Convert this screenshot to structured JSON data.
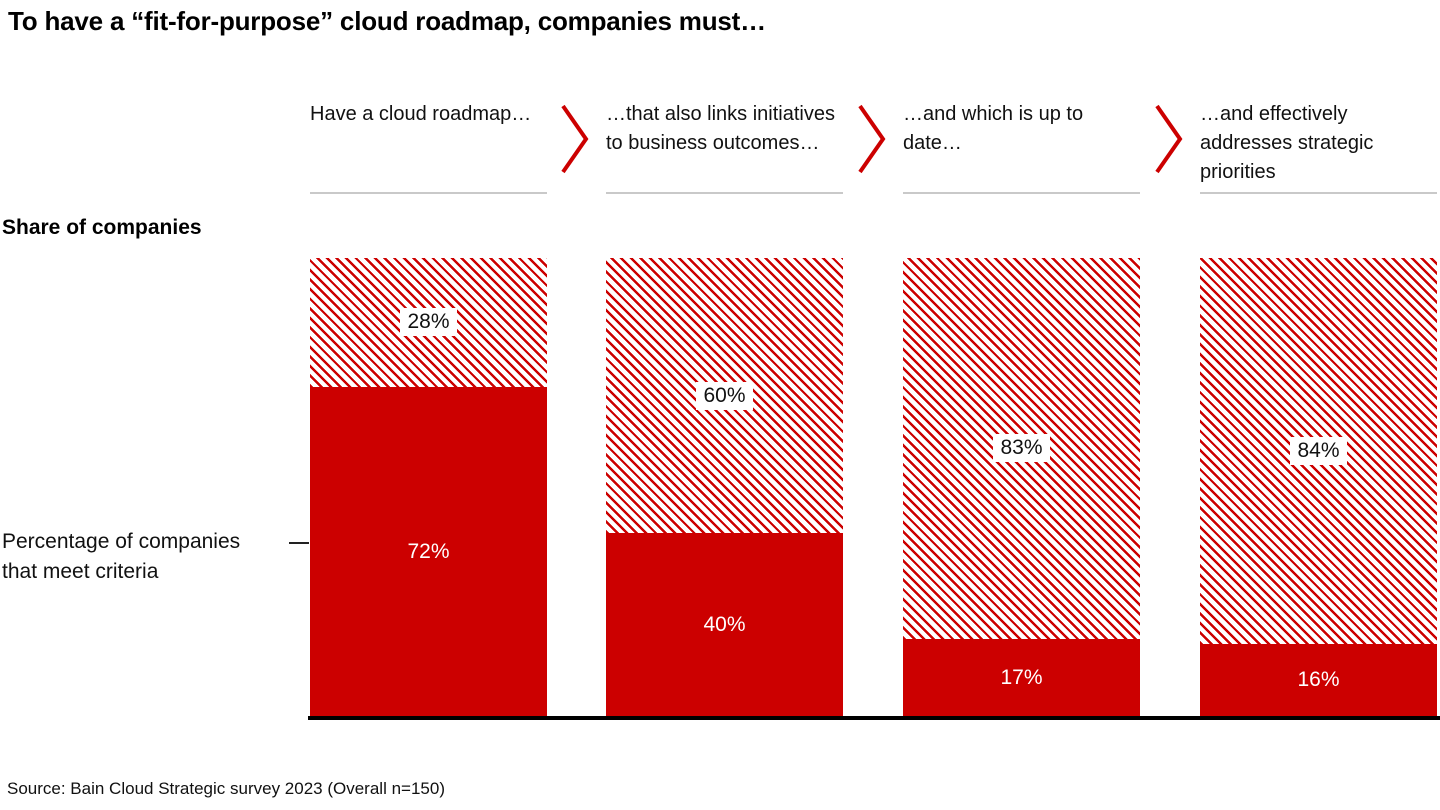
{
  "title": "To have a “fit-for-purpose” cloud roadmap, companies must…",
  "labels": {
    "y_axis_title": "Share of companies",
    "annotation_line1": "Percentage of companies",
    "annotation_line2": "that meet criteria"
  },
  "source": "Source: Bain Cloud Strategic survey 2023 (Overall n=150)",
  "colors": {
    "bain_red": "#cc0000",
    "hatch_stripe_red": "#cc0000",
    "underline_gray": "#c9c9c9",
    "baseline_black": "#000000",
    "solid_label_white": "#ffffff"
  },
  "chart_data": {
    "type": "bar",
    "stacked": true,
    "orientation": "vertical",
    "unit": "percent",
    "ylim": [
      0,
      100
    ],
    "grid": false,
    "legend": false,
    "categories": [
      "Have a cloud roadmap…",
      "…that also links initiatives to business outcomes…",
      "…and which is up to date…",
      "…and effectively addresses strategic priorities"
    ],
    "series": [
      {
        "name": "Percentage of companies that meet criteria (solid red)",
        "values": [
          72,
          40,
          17,
          16
        ]
      },
      {
        "name": "Remainder of companies (hatched)",
        "values": [
          28,
          60,
          83,
          84
        ]
      }
    ],
    "columns": [
      {
        "header": "Have a cloud roadmap…",
        "hatched_value": 28,
        "hatched_label": "28%",
        "solid_value": 72,
        "solid_label": "72%"
      },
      {
        "header": "…that also links initiatives to business outcomes…",
        "hatched_value": 60,
        "hatched_label": "60%",
        "solid_value": 40,
        "solid_label": "40%"
      },
      {
        "header": "…and which is up to date…",
        "hatched_value": 83,
        "hatched_label": "83%",
        "solid_value": 17,
        "solid_label": "17%"
      },
      {
        "header": "…and effectively addresses strategic priorities",
        "hatched_value": 84,
        "hatched_label": "84%",
        "solid_value": 16,
        "solid_label": "16%"
      }
    ]
  }
}
